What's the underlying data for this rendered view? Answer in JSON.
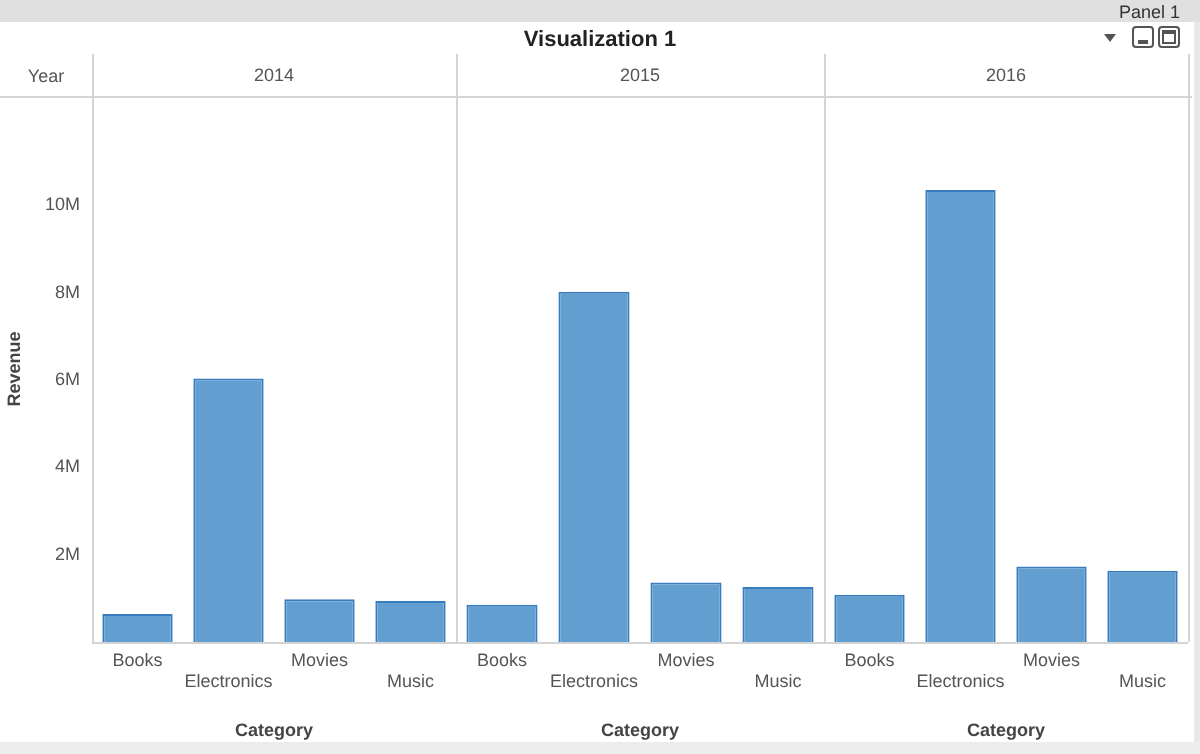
{
  "chart_data": [
    {
      "type": "bar",
      "title": "2014",
      "annotations": [
        "Panel 1",
        "Visualization 1",
        "Year"
      ],
      "xlabel": "Category",
      "ylabel": "Revenue",
      "categories": [
        "Books",
        "Electronics",
        "Movies",
        "Music"
      ],
      "values": [
        640000,
        6030000,
        980000,
        940000
      ],
      "color": "#629fd0",
      "ylim": [
        0,
        12500000
      ],
      "yticks": [
        {
          "value": 2000000,
          "label": "2M"
        },
        {
          "value": 4000000,
          "label": "4M"
        },
        {
          "value": 6000000,
          "label": "6M"
        },
        {
          "value": 8000000,
          "label": "8M"
        },
        {
          "value": 10000000,
          "label": "10M"
        }
      ],
      "grid": false,
      "legend": false
    },
    {
      "type": "bar",
      "title": "2015",
      "xlabel": "Category",
      "categories": [
        "Books",
        "Electronics",
        "Movies",
        "Music"
      ],
      "values": [
        850000,
        8020000,
        1360000,
        1260000
      ],
      "color": "#629fd0",
      "ylim": [
        0,
        12500000
      ],
      "tick_labels": "x",
      "grid": false,
      "legend": false
    },
    {
      "type": "bar",
      "title": "2016",
      "xlabel": "Category",
      "categories": [
        "Books",
        "Electronics",
        "Movies",
        "Music"
      ],
      "values": [
        1080000,
        10350000,
        1730000,
        1630000
      ],
      "color": "#629fd0",
      "ylim": [
        0,
        12500000
      ],
      "tick_labels": "x",
      "grid": false,
      "legend": false
    }
  ]
}
